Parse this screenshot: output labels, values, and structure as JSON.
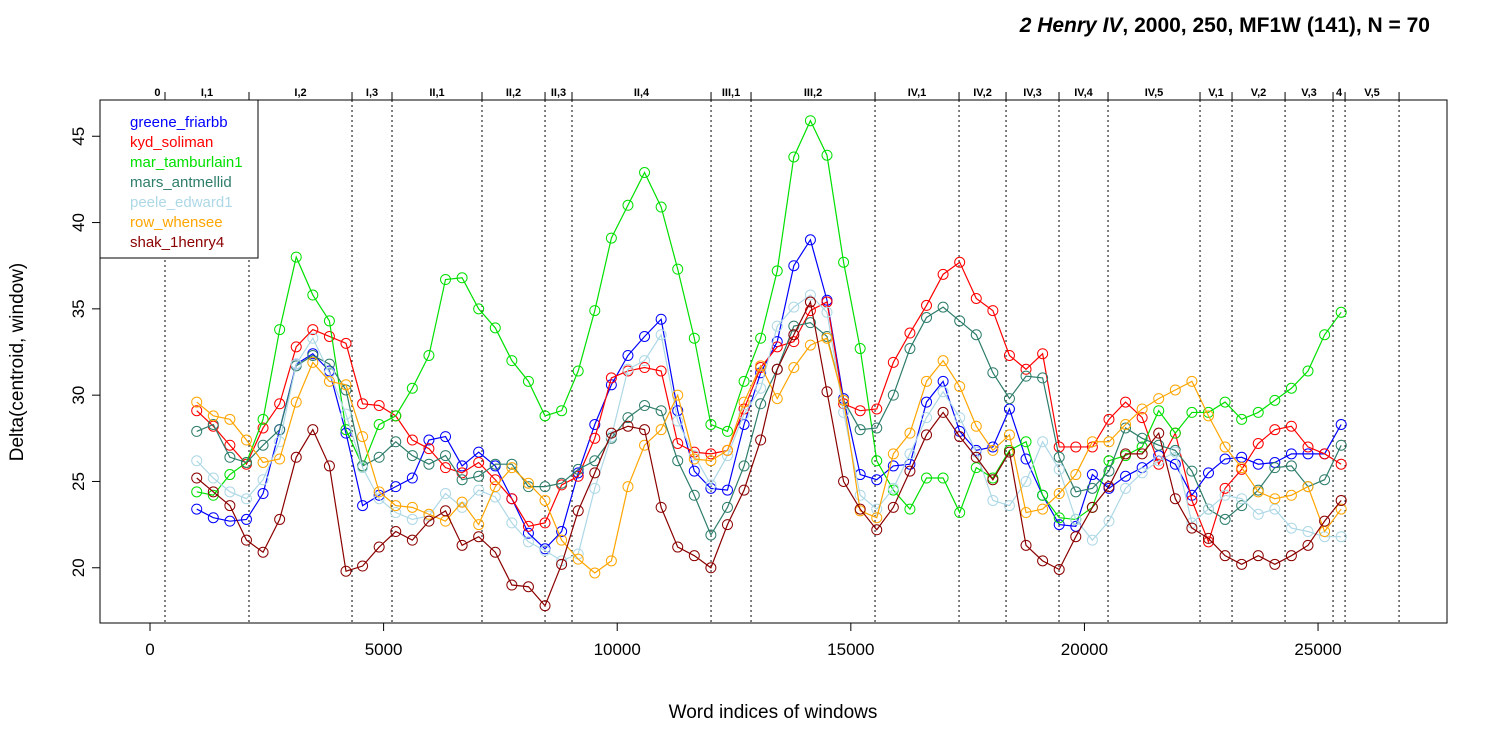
{
  "chart_data": {
    "type": "line",
    "title_parts": [
      "2 Henry IV",
      ", 2000, 250, MF1W (141), N = 70"
    ],
    "x_label": "Word indices of windows",
    "y_label": "Delta(centroid, window)",
    "xlim": [
      -1070,
      27760
    ],
    "ylim": [
      16.8,
      47.1
    ],
    "xticks": [
      0,
      5000,
      10000,
      15000,
      20000,
      25000
    ],
    "yticks": [
      20,
      25,
      30,
      35,
      40,
      45
    ],
    "legend": "top-left",
    "scene_labels": [
      "0",
      "I,1",
      "I,2",
      "I,3",
      "II,1",
      "II,2",
      "II,3",
      "II,4",
      "III,1",
      "III,2",
      "IV,1",
      "IV,2",
      "IV,3",
      "IV,4",
      "IV,5",
      "V,1",
      "V,2",
      "V,3",
      "4",
      "V,5"
    ],
    "scene_ends": [
      321,
      2119,
      4324,
      5180,
      7106,
      8455,
      9032,
      12008,
      12864,
      15518,
      17316,
      18322,
      19456,
      20505,
      22474,
      23159,
      24294,
      25321,
      25578,
      26734
    ],
    "x": [
      1000,
      1355,
      1710,
      2065,
      2420,
      2775,
      3130,
      3485,
      3840,
      4195,
      4550,
      4905,
      5260,
      5615,
      5970,
      6325,
      6680,
      7035,
      7390,
      7745,
      8100,
      8455,
      8810,
      9165,
      9520,
      9875,
      10230,
      10585,
      10940,
      11295,
      11650,
      12005,
      12360,
      12715,
      13070,
      13425,
      13780,
      14135,
      14490,
      14845,
      15200,
      15555,
      15910,
      16265,
      16620,
      16975,
      17330,
      17685,
      18040,
      18395,
      18750,
      19105,
      19460,
      19815,
      20170,
      20525,
      20880,
      21235,
      21590,
      21945,
      22300,
      22655,
      23010,
      23365,
      23720,
      24075,
      24430,
      24785,
      25140,
      25495
    ],
    "series": [
      {
        "name": "greene_friarbb",
        "color": "#0000ff",
        "values": [
          23.4,
          22.9,
          22.7,
          22.8,
          24.3,
          28.0,
          31.8,
          32.4,
          31.4,
          27.8,
          23.6,
          24.2,
          24.7,
          25.2,
          27.4,
          27.6,
          25.9,
          26.7,
          25.9,
          24.0,
          22.0,
          21.1,
          22.1,
          25.5,
          28.3,
          30.6,
          32.3,
          33.4,
          34.4,
          29.1,
          25.6,
          24.6,
          24.5,
          28.3,
          31.3,
          33.1,
          37.5,
          39.0,
          35.5,
          29.8,
          25.4,
          25.1,
          25.9,
          26.0,
          29.6,
          30.8,
          27.9,
          26.8,
          27.0,
          29.2,
          26.3,
          24.2,
          22.5,
          22.4,
          25.4,
          24.6,
          25.3,
          25.8,
          26.5,
          26.0,
          24.2,
          25.5,
          26.3,
          26.4,
          26.0,
          26.1,
          26.6,
          26.6,
          26.6,
          28.3
        ]
      },
      {
        "name": "kyd_soliman",
        "color": "#ff0000",
        "values": [
          29.1,
          28.2,
          27.1,
          26.0,
          28.1,
          29.5,
          32.8,
          33.8,
          33.4,
          33.0,
          29.5,
          29.4,
          28.8,
          27.4,
          26.9,
          25.8,
          25.5,
          26.1,
          25.1,
          24.0,
          22.4,
          22.6,
          24.8,
          25.3,
          27.5,
          31.0,
          31.4,
          31.6,
          31.4,
          27.2,
          26.7,
          26.6,
          26.8,
          29.2,
          31.6,
          32.8,
          33.1,
          34.9,
          35.4,
          29.5,
          29.1,
          29.2,
          31.9,
          33.6,
          35.2,
          37.0,
          37.7,
          35.6,
          34.9,
          32.3,
          31.5,
          32.4,
          27.0,
          27.0,
          27.0,
          28.6,
          29.6,
          28.7,
          26.0,
          27.8,
          23.9,
          21.5,
          24.6,
          25.7,
          27.2,
          28.0,
          28.2,
          27.0,
          26.6,
          26.0
        ]
      },
      {
        "name": "mar_tamburlain1",
        "color": "#00e000",
        "values": [
          24.4,
          24.2,
          25.4,
          26.1,
          28.6,
          33.8,
          38.0,
          35.8,
          34.3,
          28.0,
          25.9,
          28.3,
          28.8,
          30.4,
          32.3,
          36.7,
          36.8,
          35.0,
          33.9,
          32.0,
          30.8,
          28.8,
          29.1,
          31.4,
          34.9,
          39.1,
          41.0,
          42.9,
          40.9,
          37.3,
          33.3,
          28.3,
          27.9,
          30.8,
          33.3,
          37.2,
          43.8,
          45.9,
          43.9,
          37.7,
          32.7,
          26.2,
          24.5,
          23.4,
          25.2,
          25.2,
          23.2,
          25.8,
          25.2,
          26.8,
          27.3,
          24.2,
          22.9,
          22.8,
          23.5,
          26.2,
          26.5,
          27.0,
          29.1,
          27.8,
          29.0,
          29.0,
          29.6,
          28.6,
          29.0,
          29.7,
          30.4,
          31.4,
          33.5,
          34.8
        ]
      },
      {
        "name": "mars_antmellid",
        "color": "#2e7d6b",
        "values": [
          27.9,
          28.3,
          26.4,
          26.1,
          27.1,
          28.0,
          31.7,
          32.3,
          31.8,
          30.3,
          25.9,
          26.4,
          27.3,
          26.5,
          26.0,
          26.5,
          25.1,
          25.3,
          26.0,
          26.0,
          24.7,
          24.7,
          24.9,
          25.7,
          26.2,
          27.5,
          28.7,
          29.4,
          29.1,
          26.2,
          24.2,
          21.9,
          23.5,
          25.9,
          29.5,
          31.5,
          34.0,
          34.2,
          33.4,
          29.7,
          28.0,
          28.1,
          30.0,
          32.7,
          34.5,
          35.1,
          34.3,
          33.5,
          31.3,
          29.8,
          31.1,
          31.0,
          26.4,
          24.4,
          24.6,
          25.6,
          28.1,
          27.5,
          27.1,
          26.8,
          25.6,
          23.4,
          22.8,
          23.6,
          24.5,
          25.8,
          25.9,
          24.7,
          25.1,
          27.1
        ]
      },
      {
        "name": "peele_edward1",
        "color": "#add8e6",
        "values": [
          26.2,
          25.2,
          24.4,
          24.0,
          25.1,
          27.3,
          31.8,
          33.3,
          31.3,
          28.9,
          25.8,
          24.0,
          23.2,
          22.8,
          23.0,
          24.3,
          23.5,
          24.5,
          24.1,
          22.6,
          21.5,
          21.0,
          20.4,
          20.8,
          24.6,
          27.6,
          31.5,
          32.0,
          33.5,
          28.5,
          26.5,
          24.8,
          26.5,
          28.9,
          30.4,
          34.0,
          35.1,
          35.8,
          34.8,
          29.0,
          24.2,
          23.4,
          24.6,
          26.6,
          28.7,
          30.2,
          28.7,
          26.7,
          23.9,
          23.6,
          25.0,
          27.3,
          25.7,
          22.8,
          21.6,
          22.7,
          24.6,
          25.5,
          26.2,
          26.7,
          22.6,
          23.4,
          24.2,
          24.0,
          23.1,
          23.4,
          22.3,
          22.1,
          21.8,
          21.8
        ]
      },
      {
        "name": "row_whensee",
        "color": "#ffa500",
        "values": [
          29.6,
          28.8,
          28.6,
          27.4,
          26.1,
          26.3,
          29.6,
          31.9,
          30.8,
          30.6,
          27.6,
          24.4,
          23.6,
          23.5,
          23.1,
          22.7,
          23.8,
          22.5,
          24.7,
          25.8,
          24.9,
          23.9,
          21.6,
          20.5,
          19.7,
          20.4,
          24.7,
          27.1,
          28.0,
          30.0,
          26.3,
          26.2,
          26.8,
          29.6,
          31.7,
          29.8,
          31.6,
          32.9,
          33.3,
          29.7,
          23.3,
          22.9,
          26.6,
          27.8,
          30.8,
          32.0,
          30.5,
          28.2,
          26.8,
          27.7,
          23.2,
          23.4,
          24.3,
          25.4,
          27.3,
          27.3,
          28.3,
          29.2,
          29.8,
          30.3,
          30.8,
          28.8,
          27.0,
          25.8,
          24.4,
          24.0,
          24.2,
          24.7,
          22.1,
          23.4
        ]
      },
      {
        "name": "shak_1henry4",
        "color": "#8b0000",
        "values": [
          25.2,
          24.4,
          23.6,
          21.6,
          20.9,
          22.8,
          26.4,
          28.0,
          25.9,
          19.8,
          20.1,
          21.2,
          22.1,
          21.6,
          22.7,
          23.3,
          21.3,
          21.8,
          20.9,
          19.0,
          18.9,
          17.8,
          20.2,
          23.3,
          25.5,
          27.8,
          28.2,
          28.0,
          23.5,
          21.2,
          20.7,
          20.0,
          22.5,
          24.5,
          27.4,
          31.5,
          33.5,
          35.4,
          30.2,
          25.0,
          23.4,
          22.2,
          23.5,
          25.6,
          27.7,
          29.0,
          27.6,
          26.4,
          25.1,
          26.7,
          21.3,
          20.4,
          19.9,
          21.8,
          23.5,
          24.7,
          26.6,
          26.6,
          27.8,
          24.0,
          22.3,
          21.7,
          20.7,
          20.2,
          20.7,
          20.2,
          20.7,
          21.3,
          22.7,
          23.9
        ]
      }
    ]
  }
}
